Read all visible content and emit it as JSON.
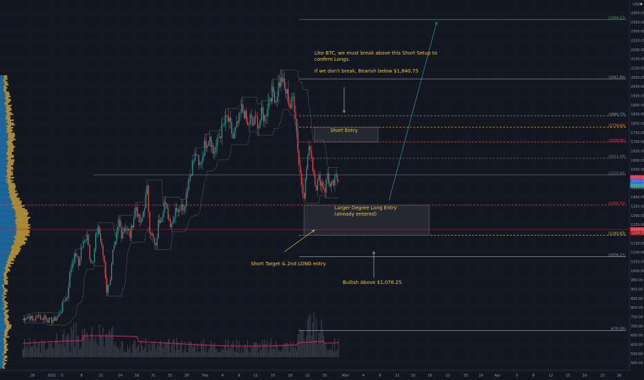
{
  "header": {
    "currency": "USDT"
  },
  "chart_data": {
    "type": "candlestick",
    "ylim": [
      460,
      2470
    ],
    "y_ticks": [
      2400,
      2350,
      2300,
      2250,
      2200,
      2150,
      2100,
      2050,
      2000,
      1950,
      1900,
      1850,
      1800,
      1750,
      1700,
      1650,
      1600,
      1550,
      1500,
      1450,
      1400,
      1350,
      1300,
      1250,
      1200,
      1150,
      1100,
      1050,
      1000,
      950,
      900,
      850,
      800,
      750,
      700,
      650,
      600,
      550,
      500
    ],
    "x_ticks": [
      {
        "label": "28",
        "x": 47
      },
      {
        "label": "2021",
        "x": 75
      },
      {
        "label": "5",
        "x": 90
      },
      {
        "label": "8",
        "x": 118
      },
      {
        "label": "11",
        "x": 146
      },
      {
        "label": "14",
        "x": 174
      },
      {
        "label": "18",
        "x": 198
      },
      {
        "label": "21",
        "x": 222
      },
      {
        "label": "25",
        "x": 246
      },
      {
        "label": "28",
        "x": 270
      },
      {
        "label": "Feb",
        "x": 297
      },
      {
        "label": "4",
        "x": 322
      },
      {
        "label": "8",
        "x": 346
      },
      {
        "label": "11",
        "x": 370
      },
      {
        "label": "15",
        "x": 395
      },
      {
        "label": "18",
        "x": 420
      },
      {
        "label": "22",
        "x": 445
      },
      {
        "label": "25",
        "x": 470
      },
      {
        "label": "Mar",
        "x": 500
      },
      {
        "label": "4",
        "x": 526
      },
      {
        "label": "8",
        "x": 550
      },
      {
        "label": "11",
        "x": 575
      },
      {
        "label": "15",
        "x": 598
      },
      {
        "label": "18",
        "x": 622
      },
      {
        "label": "22",
        "x": 648
      },
      {
        "label": "25",
        "x": 674
      },
      {
        "label": "29",
        "x": 696
      },
      {
        "label": "Apr",
        "x": 720
      },
      {
        "label": "5",
        "x": 748
      },
      {
        "label": "8",
        "x": 772
      },
      {
        "label": "12",
        "x": 797
      },
      {
        "label": "15",
        "x": 822
      },
      {
        "label": "19",
        "x": 846
      },
      {
        "label": "22",
        "x": 872
      },
      {
        "label": "26",
        "x": 896
      }
    ],
    "price_path": [
      [
        738,
        1.0
      ],
      [
        744,
        1.2
      ],
      [
        752,
        1.5
      ],
      [
        749,
        1.8
      ],
      [
        735,
        2.2
      ],
      [
        742,
        2.5
      ],
      [
        767,
        2.8
      ],
      [
        735,
        3.2
      ],
      [
        754,
        3.5
      ],
      [
        733,
        3.8
      ],
      [
        732,
        4.2
      ],
      [
        730,
        4.5
      ],
      [
        740,
        4.8
      ],
      [
        760,
        5.2
      ],
      [
        790,
        5.5
      ],
      [
        840,
        5.8
      ],
      [
        860,
        6.2
      ],
      [
        985,
        6.5
      ],
      [
        1050,
        6.8
      ],
      [
        1090,
        7.2
      ],
      [
        1030,
        7.5
      ],
      [
        1120,
        7.8
      ],
      [
        1160,
        8.2
      ],
      [
        1210,
        8.5
      ],
      [
        1080,
        8.8
      ],
      [
        1040,
        9.2
      ],
      [
        1180,
        9.5
      ],
      [
        1240,
        9.8
      ],
      [
        1120,
        10.2
      ],
      [
        1050,
        10.5
      ],
      [
        890,
        10.8
      ],
      [
        960,
        11.2
      ],
      [
        1100,
        11.5
      ],
      [
        1140,
        11.8
      ],
      [
        1270,
        12.2
      ],
      [
        1200,
        12.5
      ],
      [
        1240,
        12.8
      ],
      [
        1220,
        13.2
      ],
      [
        1190,
        13.5
      ],
      [
        1260,
        13.8
      ],
      [
        1350,
        14.2
      ],
      [
        1280,
        14.5
      ],
      [
        1250,
        14.8
      ],
      [
        1360,
        15.2
      ],
      [
        1440,
        15.5
      ],
      [
        1230,
        15.8
      ],
      [
        1170,
        16.2
      ],
      [
        1120,
        16.5
      ],
      [
        1260,
        16.8
      ],
      [
        1310,
        17.2
      ],
      [
        1370,
        17.5
      ],
      [
        1320,
        17.8
      ],
      [
        1260,
        18.2
      ],
      [
        1270,
        18.5
      ],
      [
        1350,
        18.8
      ],
      [
        1320,
        19.2
      ],
      [
        1380,
        19.5
      ],
      [
        1330,
        19.8
      ],
      [
        1460,
        20.2
      ],
      [
        1520,
        20.5
      ],
      [
        1580,
        20.8
      ],
      [
        1640,
        21.2
      ],
      [
        1560,
        21.5
      ],
      [
        1600,
        21.8
      ],
      [
        1680,
        22.2
      ],
      [
        1710,
        22.5
      ],
      [
        1740,
        22.8
      ],
      [
        1640,
        23.2
      ],
      [
        1670,
        23.5
      ],
      [
        1720,
        23.8
      ],
      [
        1760,
        24.2
      ],
      [
        1800,
        24.5
      ],
      [
        1830,
        24.8
      ],
      [
        1780,
        25.2
      ],
      [
        1720,
        25.5
      ],
      [
        1760,
        25.8
      ],
      [
        1820,
        26.2
      ],
      [
        1880,
        26.5
      ],
      [
        1860,
        26.8
      ],
      [
        1780,
        27.2
      ],
      [
        1830,
        27.5
      ],
      [
        1790,
        27.8
      ],
      [
        1820,
        28.2
      ],
      [
        1790,
        28.5
      ],
      [
        1850,
        28.8
      ],
      [
        1830,
        29.2
      ],
      [
        1900,
        29.5
      ],
      [
        1950,
        29.8
      ],
      [
        1970,
        30.2
      ],
      [
        1930,
        30.5
      ],
      [
        2010,
        30.8
      ],
      [
        2041,
        31.2
      ],
      [
        1980,
        31.5
      ],
      [
        1960,
        31.8
      ],
      [
        1890,
        32.2
      ],
      [
        1940,
        32.5
      ],
      [
        1850,
        32.8
      ],
      [
        1580,
        33.2
      ],
      [
        1480,
        33.5
      ],
      [
        1420,
        33.8
      ],
      [
        1620,
        34.2
      ],
      [
        1680,
        34.5
      ],
      [
        1560,
        34.8
      ],
      [
        1460,
        35.2
      ],
      [
        1500,
        35.5
      ],
      [
        1480,
        35.8
      ],
      [
        1440,
        36.2
      ],
      [
        1530,
        36.5
      ],
      [
        1450,
        36.8
      ],
      [
        1470,
        37.2
      ],
      [
        1500,
        37.5
      ],
      [
        1484,
        37.8
      ]
    ],
    "volume_profile_peak_price": 1240,
    "levels": [
      {
        "label": "2364.22",
        "value": 2364.22,
        "color": "#4caf50",
        "style": "solid"
      },
      {
        "label": "2041.89",
        "value": 2041.89,
        "color": "#9598a1",
        "style": "solid"
      },
      {
        "label": "1840.73",
        "value": 1840.73,
        "color": "#9598a1",
        "style": "dashed"
      },
      {
        "label": "1779.60",
        "value": 1779.6,
        "color": "#ff9800",
        "style": "dashed"
      },
      {
        "label": "1698.95",
        "value": 1698.95,
        "color": "#f23645",
        "style": "dashed"
      },
      {
        "label": "1611.08",
        "value": 1611.08,
        "color": "#787b86",
        "style": "dashed"
      },
      {
        "label": "1520.94",
        "value": 1520.94,
        "color": "#787b86",
        "style": "solid"
      },
      {
        "label": "1356.72",
        "value": 1356.72,
        "color": "#f23645",
        "style": "dashed"
      },
      {
        "label": "1193.83",
        "value": 1193.83,
        "color": "#cddc39",
        "style": "dashed"
      },
      {
        "label": "1076.27",
        "value": 1076.27,
        "color": "#9598a1",
        "style": "solid"
      },
      {
        "label": "676.09",
        "value": 676.09,
        "color": "#9598a1",
        "style": "solid"
      }
    ],
    "price_tags": [
      {
        "label": "1507.15",
        "value": 1507.15,
        "color": "#f23645"
      },
      {
        "label": "1485.80",
        "value": 1485.8,
        "color": "#2962ff"
      },
      {
        "label": "1462.67",
        "value": 1462.67,
        "color": "#2a9d8f"
      },
      {
        "label": "1224.24",
        "value": 1224.24,
        "color": "#f23645"
      },
      {
        "label": "1205.01",
        "value": 1205.01,
        "color": "#b71c1c"
      }
    ],
    "boxes": [
      {
        "label": "Short Entry",
        "y_top": 1779.6,
        "y_bottom": 1698.95
      },
      {
        "label": "Larger Degree Long Entry",
        "y_top": 1356.72,
        "y_bottom": 1193.83
      }
    ],
    "annotations": {
      "top_note_line1": "Like BTC, we must break above this Short Setup to",
      "top_note_line2": "confirm Longs.",
      "top_note_line3": "If we don't break, Bearish below $1,840.75",
      "short_entry": "Short Entry",
      "long_entry_line1": "Larger Degree Long Entry",
      "long_entry_line2": "(already entered)",
      "short_target": "Short Target & 2nd LONG entry",
      "bullish": "Bullish Above $1,076.25"
    }
  }
}
